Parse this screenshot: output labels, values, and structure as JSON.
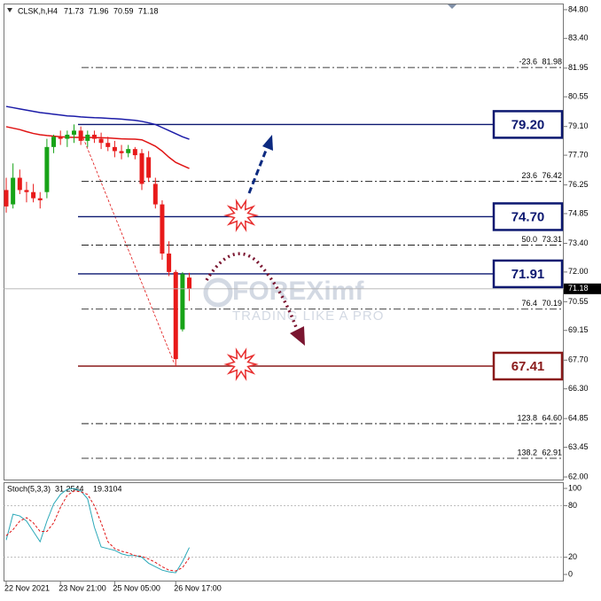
{
  "chart_data": [
    {
      "type": "candlestick",
      "symbol": "CLSK,h,H4",
      "ohlc_header": [
        71.73,
        71.96,
        70.59,
        71.18
      ],
      "categories": [
        "22 Nov 2021",
        null,
        null,
        null,
        null,
        null,
        null,
        null,
        "23 Nov 21:00",
        null,
        null,
        null,
        null,
        null,
        null,
        null,
        "25 Nov 05:00",
        null,
        null,
        null,
        null,
        null,
        null,
        null,
        null,
        "26 Nov 17:00",
        null,
        null
      ],
      "open": [
        76.0,
        75.3,
        76.6,
        76.0,
        75.9,
        75.6,
        75.9,
        78.1,
        78.6,
        78.5,
        78.7,
        78.9,
        78.4,
        78.7,
        78.5,
        78.3,
        78.1,
        77.9,
        77.8,
        78.0,
        77.8,
        77.6,
        76.3,
        75.3,
        72.9,
        72.0,
        69.2,
        71.73
      ],
      "high": [
        76.6,
        77.3,
        77.0,
        76.4,
        76.3,
        75.9,
        78.5,
        78.7,
        78.9,
        78.9,
        79.2,
        79.1,
        78.9,
        78.9,
        78.8,
        78.6,
        78.4,
        78.2,
        78.2,
        78.1,
        78.0,
        77.9,
        76.6,
        75.5,
        73.5,
        72.1,
        72.0,
        71.96
      ],
      "low": [
        74.9,
        75.1,
        75.8,
        75.4,
        75.4,
        75.1,
        75.6,
        77.8,
        78.2,
        78.1,
        78.3,
        78.2,
        78.1,
        78.3,
        78.0,
        77.9,
        77.6,
        77.5,
        77.6,
        77.5,
        76.0,
        76.4,
        75.1,
        72.6,
        71.8,
        67.41,
        69.1,
        70.59
      ],
      "close": [
        75.2,
        76.6,
        76.0,
        75.9,
        75.6,
        75.5,
        78.1,
        78.6,
        78.5,
        78.7,
        78.9,
        78.4,
        78.7,
        78.5,
        78.3,
        78.1,
        77.9,
        77.8,
        78.0,
        77.7,
        76.3,
        76.6,
        75.3,
        72.9,
        72.0,
        67.75,
        71.9,
        71.18
      ],
      "up_color": "#17a317",
      "down_color": "#e81a1a",
      "overlays": [
        {
          "color": "#1c1ca8",
          "values": [
            80.08,
            80.02,
            79.96,
            79.9,
            79.84,
            79.78,
            79.74,
            79.7,
            79.66,
            79.62,
            79.6,
            79.57,
            79.55,
            79.53,
            79.52,
            79.5,
            79.48,
            79.46,
            79.43,
            79.4,
            79.35,
            79.28,
            79.2,
            79.05,
            78.9,
            78.75,
            78.6,
            78.48
          ]
        },
        {
          "color": "#e01414",
          "values": [
            79.09,
            79.02,
            78.95,
            78.85,
            78.76,
            78.7,
            78.66,
            78.63,
            78.6,
            78.58,
            78.57,
            78.57,
            78.57,
            78.56,
            78.55,
            78.54,
            78.52,
            78.5,
            78.49,
            78.48,
            78.45,
            78.3,
            78.14,
            77.9,
            77.6,
            77.35,
            77.2,
            77.05
          ]
        }
      ],
      "ylim": [
        61.83,
        85.1
      ],
      "yticks": [
        {
          "value": 84.8,
          "label": "84.80"
        },
        {
          "value": 83.4,
          "label": "83.40"
        },
        81.95,
        {
          "value": 80.55,
          "label": "80.55"
        },
        {
          "value": 79.1,
          "label": "79.10"
        },
        {
          "value": 77.7,
          "label": "77.70"
        },
        76.25,
        74.85,
        {
          "value": 73.4,
          "label": "73.40"
        },
        {
          "value": 72.0,
          "label": "72.00"
        },
        70.55,
        69.15,
        {
          "value": 67.7,
          "label": "67.70"
        },
        {
          "value": 66.3,
          "label": "66.30"
        },
        64.85,
        63.45,
        {
          "value": 62.0,
          "label": "62.00"
        }
      ],
      "levels": [
        {
          "price": {
            "value": 79.2,
            "label": "79.20"
          },
          "color": "#0c1870"
        },
        {
          "price": {
            "value": 74.7,
            "label": "74.70"
          },
          "color": "#0c1870"
        },
        {
          "price": 71.91,
          "color": "#0c1870"
        },
        {
          "price": 67.41,
          "color": "#8a1a1a"
        }
      ],
      "fibo": [
        {
          "ratio": "-23.6",
          "price": 81.98
        },
        {
          "ratio": "23.6",
          "price": 76.42
        },
        {
          "ratio": "50.0",
          "price": 73.31
        },
        {
          "ratio": "76.4",
          "price": 70.19
        },
        {
          "ratio": "123.8",
          "price": {
            "value": 64.6,
            "label": "64.60"
          }
        },
        {
          "ratio": "138.2",
          "price": 62.91
        }
      ],
      "watermark": [
        "FOREXimf",
        "TRADING LIKE A PRO"
      ]
    },
    {
      "type": "line",
      "title": "Stoch(5,3,3)",
      "last_values": [
        31.2544,
        19.3104
      ],
      "series": [
        {
          "color": "#2aa8b8",
          "values": [
            40,
            70,
            68,
            62,
            50,
            38,
            62,
            82,
            93,
            99,
            100,
            97,
            88,
            55,
            32,
            30,
            28,
            24,
            22,
            22,
            20,
            13,
            9,
            5,
            3,
            2,
            15,
            31.2544
          ],
          "dash": false
        },
        {
          "color": "#e01414",
          "values": [
            45,
            52,
            62,
            66,
            60,
            50,
            50,
            60,
            78,
            92,
            97,
            96,
            93,
            80,
            60,
            38,
            30,
            27,
            25,
            22,
            21,
            18,
            14,
            9,
            5,
            4,
            8,
            19.3104
          ],
          "dash": true
        }
      ],
      "ylim": [
        -8.2,
        107.2
      ],
      "yticks": [
        100,
        80,
        20,
        0
      ],
      "grid_ticks": [
        80,
        20
      ]
    }
  ]
}
